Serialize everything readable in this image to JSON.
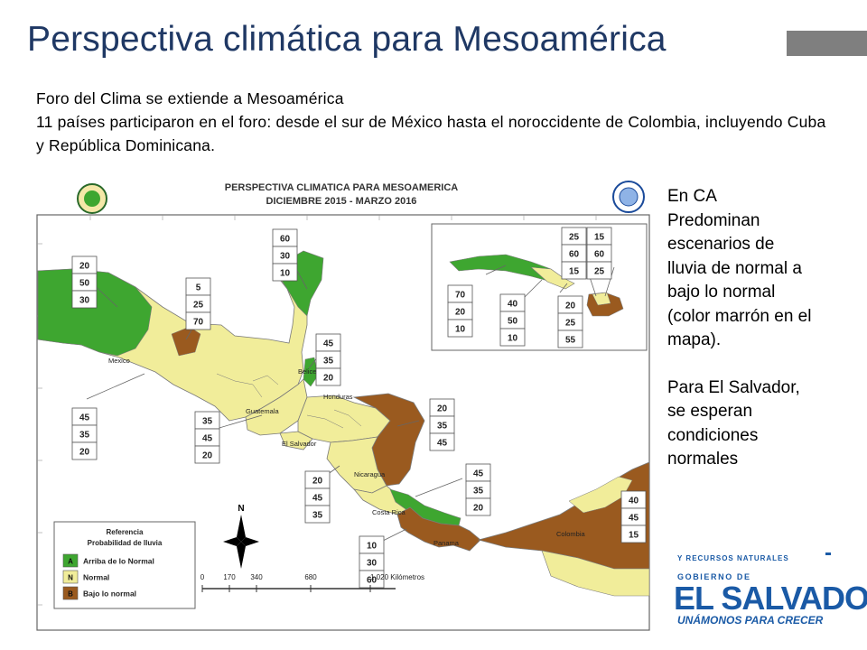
{
  "header": {
    "title": "Perspectiva climática para Mesoamérica"
  },
  "intro": {
    "line1": "Foro del Clima se extiende a Mesoamérica",
    "line2": "11 países participaron en el foro: desde el sur de México hasta el noroccidente de Colombia, incluyendo Cuba y República Dominicana."
  },
  "map": {
    "title_line1": "PERSPECTIVA CLIMATICA PARA MESOAMERICA",
    "title_line2": "DICIEMBRE 2015 - MARZO 2016",
    "countries": {
      "mexico": "Mexico",
      "belice": "Belice",
      "guatemala": "Guatemala",
      "honduras": "Honduras",
      "el_salvador": "El Salvador",
      "nicaragua": "Nicaragua",
      "costa_rica": "Costa Rica",
      "panama": "Panama",
      "colombia": "Colombia"
    },
    "north_label": "N",
    "probability_boxes": [
      {
        "values": [
          "60",
          "30",
          "10"
        ]
      },
      {
        "values": [
          "20",
          "50",
          "30"
        ]
      },
      {
        "values": [
          "5",
          "25",
          "70"
        ]
      },
      {
        "values": [
          "45",
          "35",
          "20"
        ]
      },
      {
        "values": [
          "45",
          "35",
          "20"
        ]
      },
      {
        "values": [
          "35",
          "45",
          "20"
        ]
      },
      {
        "values": [
          "20",
          "35",
          "45"
        ]
      },
      {
        "values": [
          "20",
          "45",
          "35"
        ]
      },
      {
        "values": [
          "45",
          "35",
          "20"
        ]
      },
      {
        "values": [
          "10",
          "30",
          "60"
        ]
      },
      {
        "values": [
          "40",
          "45",
          "15"
        ]
      },
      {
        "values": [
          "25",
          "60",
          "15"
        ]
      },
      {
        "values": [
          "15",
          "60",
          "25"
        ]
      },
      {
        "values": [
          "70",
          "20",
          "10"
        ]
      },
      {
        "values": [
          "40",
          "50",
          "10"
        ]
      },
      {
        "values": [
          "20",
          "25",
          "55"
        ]
      }
    ],
    "legend": {
      "title_line1": "Referencia",
      "title_line2": "Probabilidad de lluvia",
      "items": [
        {
          "key": "A",
          "label": "Arriba de lo Normal",
          "color": "#3ea630"
        },
        {
          "key": "N",
          "label": "Normal",
          "color": "#f1ed9a"
        },
        {
          "key": "B",
          "label": "Bajo lo normal",
          "color": "#9a5a1f"
        }
      ]
    },
    "scale": {
      "ticks": [
        "0",
        "170",
        "340",
        "680",
        "1,020 Kilómetros"
      ]
    },
    "colors": {
      "above_normal": "#3ea630",
      "normal": "#f1ed9a",
      "below_normal": "#9a5a1f",
      "ocean": "#ffffff",
      "outline": "#7a7a7a"
    }
  },
  "sidebar": {
    "para1": "En CA Predominan escenarios de lluvia  de normal a bajo lo normal (color marrón en el mapa).",
    "para2": "Para El Salvador, se esperan condiciones normales"
  },
  "logo": {
    "line1": "Y RECURSOS NATURALES",
    "line2": "GOBIERNO DE",
    "line3": "EL SALVADOR",
    "line4": "UNÁMONOS PARA CRECER"
  }
}
